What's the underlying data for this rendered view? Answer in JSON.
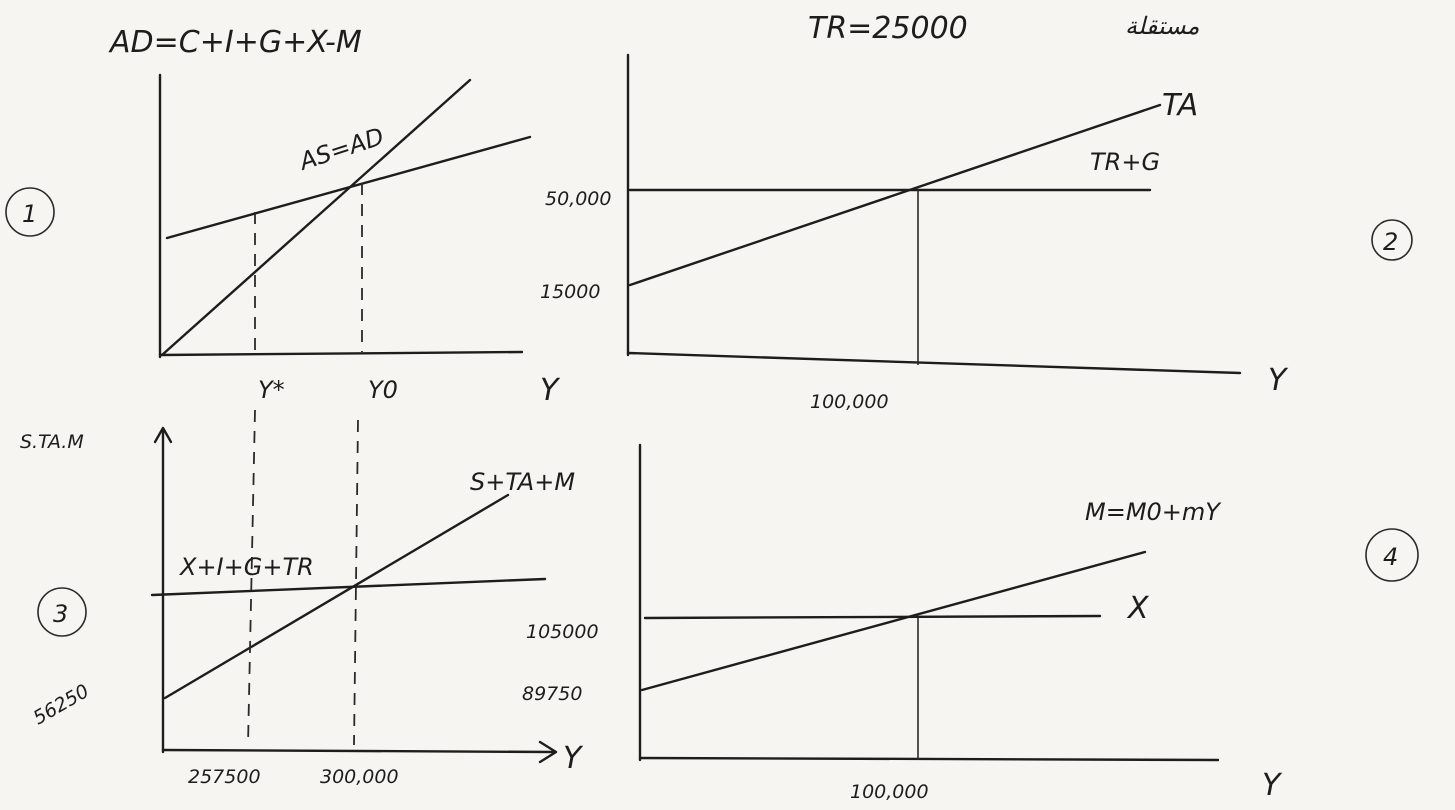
{
  "header": {
    "tr_note": "TR=25000",
    "tr_note_suffix": "مستقلة"
  },
  "graph1": {
    "number": "1",
    "title": "AD=C+I+G+X-M",
    "line_label": "AS=AD",
    "tick_y_star": "Y*",
    "tick_y0": "Y0",
    "x_axis": "Y"
  },
  "graph2": {
    "number": "2",
    "line_ta": "TA",
    "line_trg": "TR+G",
    "y_tick_high": "50,000",
    "y_tick_low": "15000",
    "x_tick": "100,000",
    "x_axis": "Y"
  },
  "graph3": {
    "number": "3",
    "y_axis": "S.TA.M",
    "line_stam": "S+TA+M",
    "line_xigtr": "X+I+G+TR",
    "y_tick": "56250",
    "x_tick_1": "257500",
    "x_tick_2": "300,000",
    "x_axis": "Y"
  },
  "graph4": {
    "number": "4",
    "line_m": "M=M0+mY",
    "line_x": "X",
    "y_tick_high": "105000",
    "y_tick_low": "89750",
    "x_tick": "100,000",
    "x_axis": "Y"
  }
}
